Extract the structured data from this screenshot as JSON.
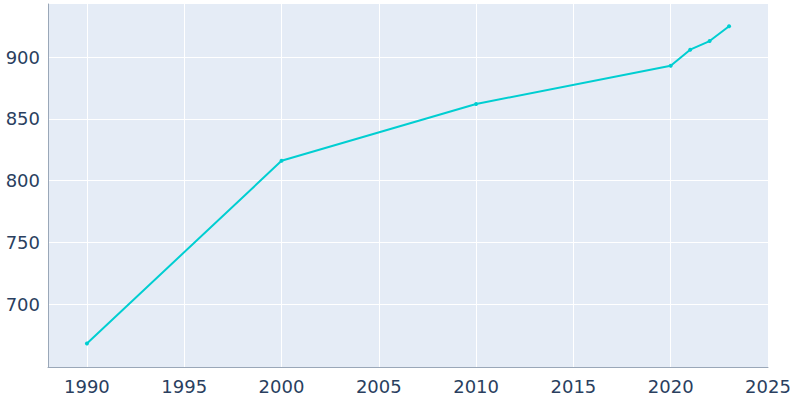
{
  "chart_data": {
    "type": "line",
    "x": [
      1990,
      2000,
      2010,
      2020,
      2021,
      2022,
      2023
    ],
    "values": [
      668,
      816,
      862,
      893,
      906,
      913,
      925
    ],
    "color": "#00ced1",
    "marker": "circle",
    "xlim": [
      1988,
      2025
    ],
    "xticks": [
      1990,
      1995,
      2000,
      2005,
      2010,
      2015,
      2020,
      2025
    ],
    "ylim": [
      649,
      943
    ],
    "yticks": [
      700,
      750,
      800,
      850,
      900
    ],
    "grid": true
  }
}
